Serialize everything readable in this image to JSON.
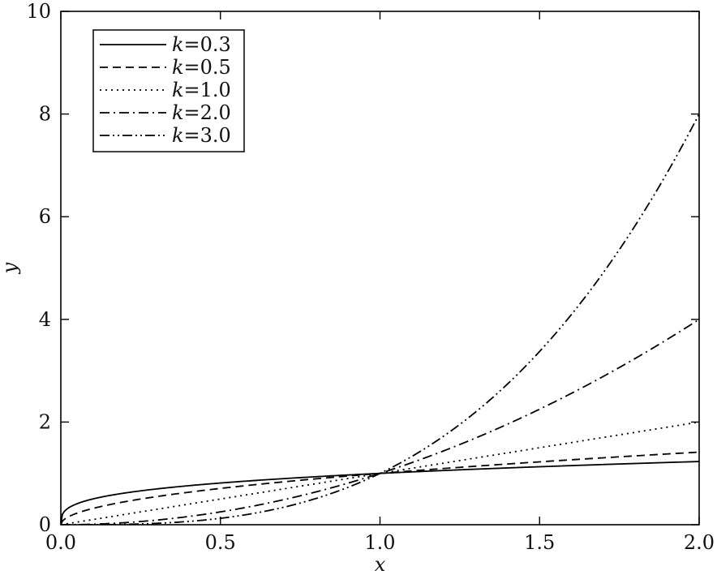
{
  "chart_data": {
    "type": "line",
    "xlabel": "x",
    "ylabel": "y",
    "xlim": [
      0,
      2
    ],
    "ylim": [
      0,
      10
    ],
    "xticks": [
      0.0,
      0.5,
      1.0,
      1.5,
      2.0
    ],
    "xtick_labels": [
      "0.0",
      "0.5",
      "1.0",
      "1.5",
      "2.0"
    ],
    "yticks": [
      0,
      2,
      4,
      6,
      8,
      10
    ],
    "ytick_labels": [
      "0",
      "2",
      "4",
      "6",
      "8",
      "10"
    ],
    "legend_position": "top-left",
    "grid": false,
    "function": "y = x^k",
    "x": [
      0.0,
      0.25,
      0.5,
      0.75,
      1.0,
      1.25,
      1.5,
      1.75,
      2.0
    ],
    "series": [
      {
        "name": "k=0.3",
        "k": 0.3,
        "dash": "solid",
        "values": [
          0.0,
          0.66,
          0.81,
          0.92,
          1.0,
          1.07,
          1.13,
          1.18,
          1.23
        ]
      },
      {
        "name": "k=0.5",
        "k": 0.5,
        "dash": "dashed",
        "values": [
          0.0,
          0.5,
          0.71,
          0.87,
          1.0,
          1.12,
          1.22,
          1.32,
          1.41
        ]
      },
      {
        "name": "k=1.0",
        "k": 1.0,
        "dash": "dotted",
        "values": [
          0.0,
          0.25,
          0.5,
          0.75,
          1.0,
          1.25,
          1.5,
          1.75,
          2.0
        ]
      },
      {
        "name": "k=2.0",
        "k": 2.0,
        "dash": "dash-dot",
        "values": [
          0.0,
          0.06,
          0.25,
          0.56,
          1.0,
          1.56,
          2.25,
          3.06,
          4.0
        ]
      },
      {
        "name": "k=3.0",
        "k": 3.0,
        "dash": "dash-dot-dot",
        "values": [
          0.0,
          0.02,
          0.13,
          0.42,
          1.0,
          1.95,
          3.38,
          5.36,
          8.0
        ]
      }
    ],
    "legend_entries": [
      {
        "prefix": "k",
        "suffix": "=0.3"
      },
      {
        "prefix": "k",
        "suffix": "=0.5"
      },
      {
        "prefix": "k",
        "suffix": "=1.0"
      },
      {
        "prefix": "k",
        "suffix": "=2.0"
      },
      {
        "prefix": "k",
        "suffix": "=3.0"
      }
    ]
  }
}
